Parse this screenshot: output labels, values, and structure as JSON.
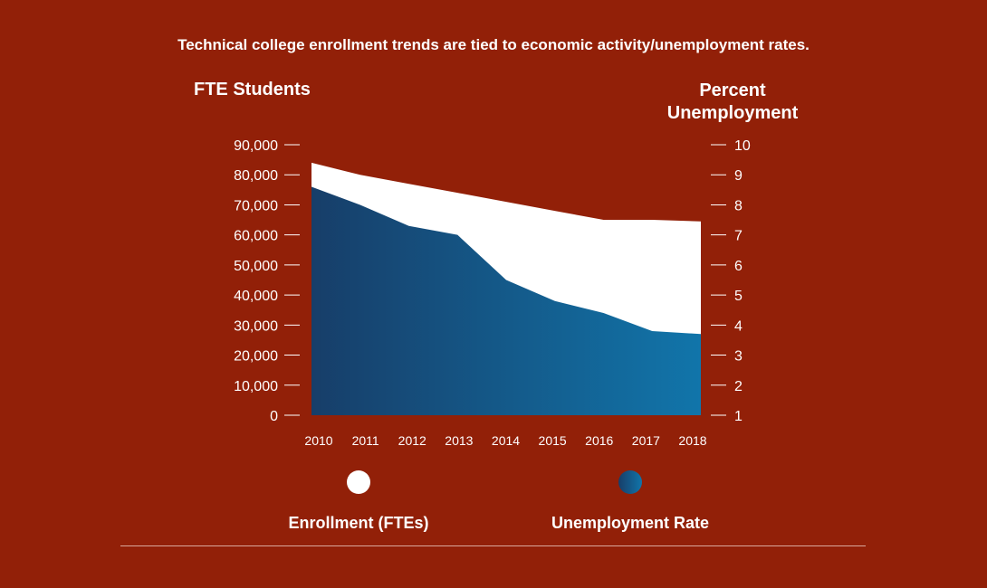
{
  "chart_data": {
    "type": "area",
    "title": "Technical college enrollment trends are tied to economic activity/unemployment rates.",
    "y_left_label": "FTE Students",
    "y_right_label_line1": "Percent",
    "y_right_label_line2": "Unemployment",
    "x": [
      "2010",
      "2011",
      "2012",
      "2013",
      "2014",
      "2015",
      "2016",
      "2017",
      "2018"
    ],
    "y_left_ticks": [
      "0",
      "10,000",
      "20,000",
      "30,000",
      "40,000",
      "50,000",
      "60,000",
      "70,000",
      "80,000",
      "90,000"
    ],
    "y_right_ticks": [
      "1",
      "2",
      "3",
      "4",
      "5",
      "6",
      "7",
      "8",
      "9",
      "10"
    ],
    "ylim_left": [
      0,
      90000
    ],
    "ylim_right": [
      1,
      10
    ],
    "grid": false,
    "legend_placement": "bottom",
    "series": [
      {
        "name": "Enrollment (FTEs)",
        "axis": "left",
        "color": "#ffffff",
        "values": [
          84000,
          80000,
          77000,
          74000,
          71000,
          68000,
          65000,
          65000,
          64500
        ]
      },
      {
        "name": "Unemployment Rate",
        "axis": "right",
        "color_start": "#173e69",
        "color_end": "#1175aa",
        "values": [
          8.6,
          8.0,
          7.3,
          7.0,
          5.5,
          4.8,
          4.4,
          3.8,
          3.7
        ]
      }
    ]
  }
}
